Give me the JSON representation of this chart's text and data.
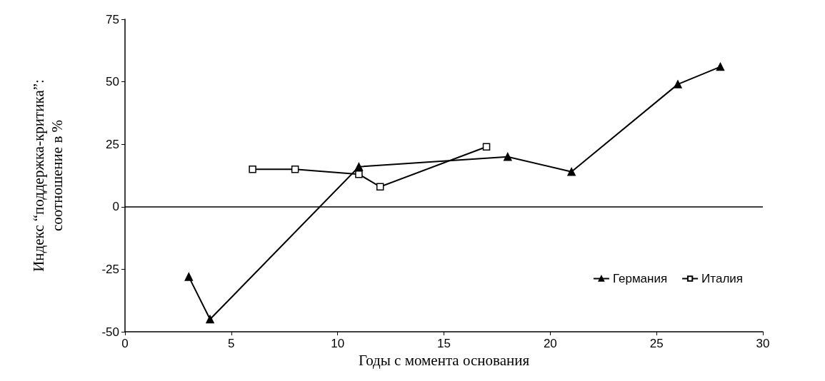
{
  "chart_data": {
    "type": "line",
    "xlabel": "Годы с момента основания",
    "ylabel": "Индекс “поддержка-критика”:\nсоотношение в %",
    "xlim": [
      0,
      30
    ],
    "xticks": [
      0,
      5,
      10,
      15,
      20,
      25,
      30
    ],
    "ylim": [
      -50,
      75
    ],
    "yticks": [
      -50,
      -25,
      0,
      25,
      50,
      75
    ],
    "grid": false,
    "legend": "bottom right",
    "line_style": "solid",
    "ref_lines": [
      {
        "axis": "y",
        "value": 0,
        "color": "#000000"
      }
    ],
    "series": [
      {
        "name": "Германия",
        "color": "#000000",
        "marker": "triangle",
        "x": [
          3,
          4,
          11,
          18,
          21,
          26,
          28
        ],
        "values": [
          -28,
          -45,
          16,
          20,
          14,
          49,
          56
        ]
      },
      {
        "name": "Италия",
        "color": "#000000",
        "marker": "square",
        "x": [
          6,
          8,
          11,
          12,
          17
        ],
        "values": [
          15,
          15,
          13,
          8,
          24
        ]
      }
    ]
  }
}
